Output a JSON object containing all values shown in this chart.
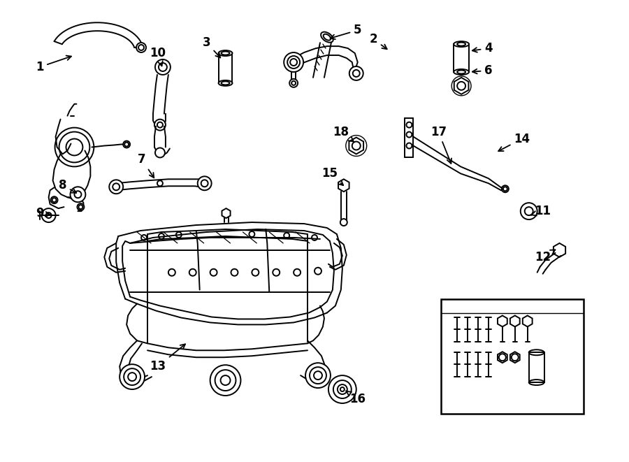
{
  "bg_color": "#ffffff",
  "line_color": "#000000",
  "fig_width": 9.0,
  "fig_height": 6.61,
  "dpi": 100,
  "label_configs": [
    [
      "1",
      55,
      95,
      105,
      78
    ],
    [
      "2",
      535,
      55,
      558,
      72
    ],
    [
      "3",
      295,
      60,
      318,
      85
    ],
    [
      "4",
      700,
      68,
      672,
      72
    ],
    [
      "5",
      512,
      42,
      468,
      55
    ],
    [
      "6",
      700,
      100,
      672,
      102
    ],
    [
      "7",
      202,
      228,
      222,
      258
    ],
    [
      "8",
      88,
      265,
      112,
      278
    ],
    [
      "9",
      55,
      305,
      75,
      308
    ],
    [
      "10",
      225,
      75,
      232,
      98
    ],
    [
      "11",
      778,
      302,
      760,
      308
    ],
    [
      "12",
      778,
      368,
      800,
      355
    ],
    [
      "13",
      225,
      525,
      268,
      490
    ],
    [
      "14",
      748,
      198,
      710,
      218
    ],
    [
      "15",
      472,
      248,
      495,
      268
    ],
    [
      "16",
      512,
      572,
      492,
      558
    ],
    [
      "17",
      628,
      188,
      648,
      238
    ],
    [
      "18",
      488,
      188,
      510,
      205
    ]
  ]
}
